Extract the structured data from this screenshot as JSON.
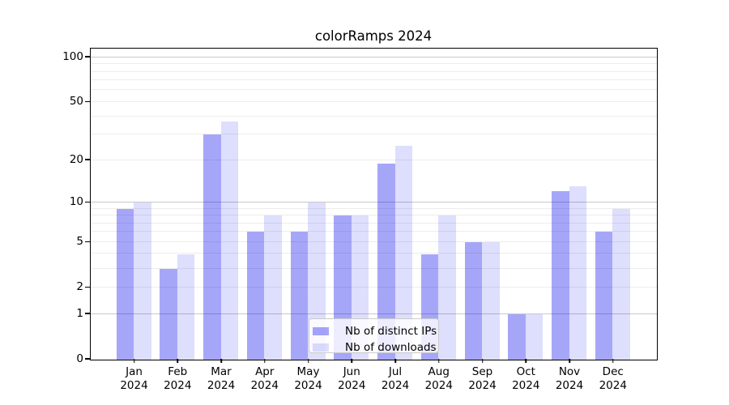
{
  "chart_data": {
    "type": "bar",
    "title": "colorRamps 2024",
    "categories": [
      "Jan 2024",
      "Feb 2024",
      "Mar 2024",
      "Apr 2024",
      "May 2024",
      "Jun 2024",
      "Jul 2024",
      "Aug 2024",
      "Sep 2024",
      "Oct 2024",
      "Nov 2024",
      "Dec 2024"
    ],
    "series": [
      {
        "name": "Nb of distinct IPs",
        "color": "rgba(0,0,238,0.35)",
        "values": [
          9,
          3,
          30,
          6,
          6,
          8,
          19,
          4,
          5,
          1,
          12,
          6
        ]
      },
      {
        "name": "Nb of downloads",
        "color": "rgba(0,0,238,0.13)",
        "values": [
          10,
          4,
          37,
          8,
          10,
          8,
          25,
          8,
          5,
          1,
          13,
          9
        ]
      }
    ],
    "yscale": "log1p",
    "ylim": [
      0,
      113
    ],
    "ytick_values": [
      0,
      1,
      2,
      5,
      10,
      20,
      50,
      100
    ],
    "ytick_labels": [
      "0",
      "1",
      "2",
      "5",
      "10",
      "20",
      "50",
      "100"
    ],
    "gridlines_major": [
      1,
      10,
      100
    ],
    "gridlines_minor": [
      2,
      3,
      4,
      5,
      6,
      7,
      8,
      9,
      20,
      30,
      40,
      50,
      60,
      70,
      80,
      90
    ],
    "legend_position": "lower center",
    "colors": {
      "grid_major": "#c8c8c8",
      "grid_minor": "#ececec",
      "axis": "#000000",
      "background": "#ffffff"
    }
  }
}
